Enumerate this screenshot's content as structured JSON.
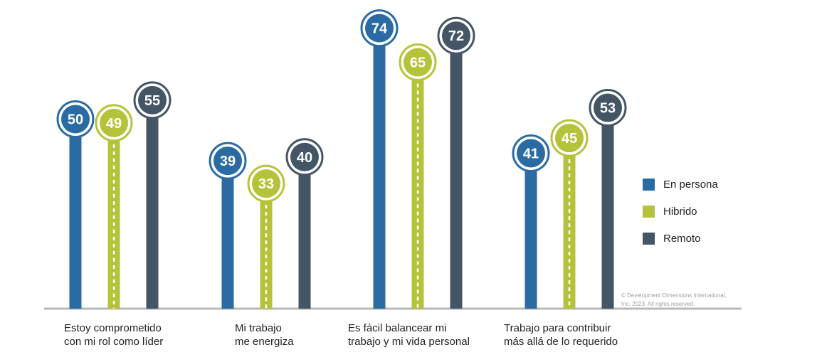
{
  "chart_data": {
    "type": "bar",
    "categories": [
      "Estoy comprometido\ncon mi rol como líder",
      "Mi trabajo\nme energiza",
      "Es fácil balancear mi\ntrabajo y mi vida personal",
      "Trabajo para contribuir\nmás allá de lo requerido"
    ],
    "series": [
      {
        "name": "En persona",
        "color": "#2a6ba3",
        "values": [
          50,
          39,
          74,
          41
        ]
      },
      {
        "name": "Hibrido",
        "color": "#b5c33a",
        "values": [
          49,
          33,
          65,
          45
        ]
      },
      {
        "name": "Remoto",
        "color": "#445566",
        "values": [
          55,
          40,
          72,
          53
        ]
      }
    ],
    "ylim": [
      0,
      80
    ],
    "legend_position": "right",
    "grid": false
  },
  "copyright": "© Development Dimensions International,\nInc. 2023. All rights reserved."
}
